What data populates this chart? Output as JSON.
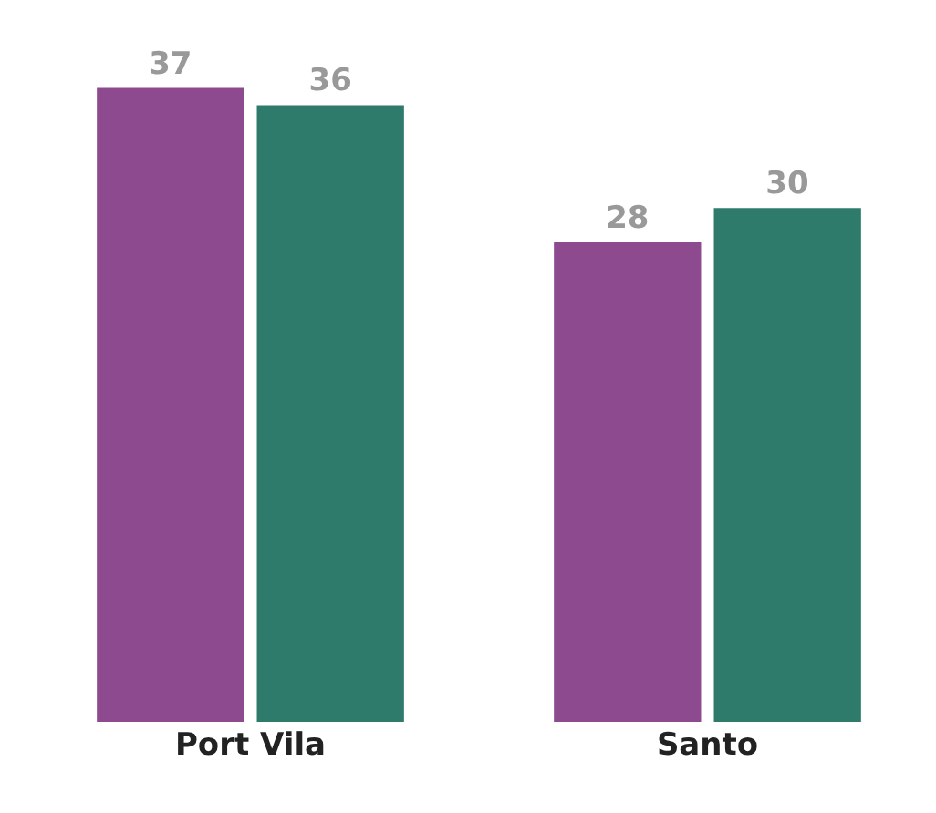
{
  "chart_data": {
    "type": "bar",
    "categories": [
      "Port Vila",
      "Santo"
    ],
    "series": [
      {
        "color": "#8e4a8f",
        "values": [
          37,
          28
        ]
      },
      {
        "color": "#2e7a6b",
        "values": [
          36,
          30
        ]
      }
    ],
    "data_labels": true,
    "legend": false,
    "grid": false
  }
}
